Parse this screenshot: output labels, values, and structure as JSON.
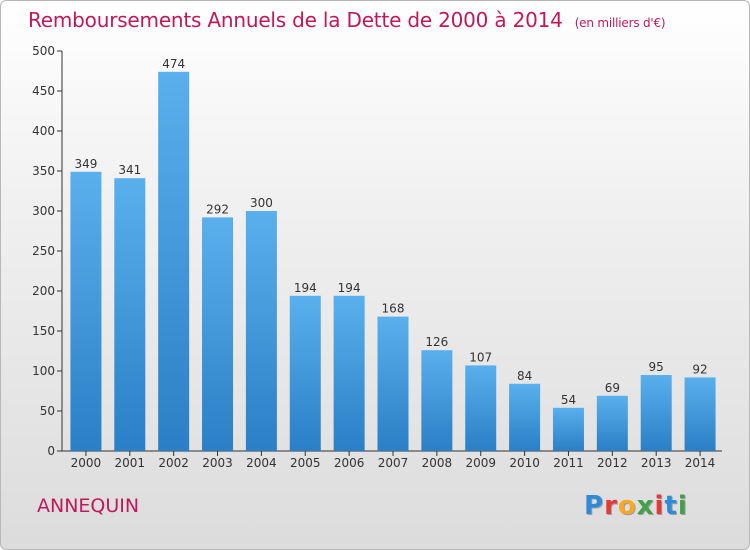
{
  "title": "Remboursements Annuels de la Dette de 2000 à 2014",
  "unit": "(en milliers d'€)",
  "commune": "ANNEQUIN",
  "logo": {
    "text": "Proxiti",
    "colors": [
      "#2e8bd8",
      "#e53935",
      "#f9a825",
      "#43a047",
      "#e53935",
      "#2e8bd8",
      "#43a047"
    ]
  },
  "chart_data": {
    "type": "bar",
    "title": "Remboursements Annuels de la Dette de 2000 à 2014",
    "subtitle": "(en milliers d'€)",
    "xlabel": "",
    "ylabel": "",
    "categories": [
      "2000",
      "2001",
      "2002",
      "2003",
      "2004",
      "2005",
      "2006",
      "2007",
      "2008",
      "2009",
      "2010",
      "2011",
      "2012",
      "2013",
      "2014"
    ],
    "values": [
      349,
      341,
      474,
      292,
      300,
      194,
      194,
      168,
      126,
      107,
      84,
      54,
      69,
      95,
      92
    ],
    "ylim": [
      0,
      500
    ],
    "yticks": [
      0,
      50,
      100,
      150,
      200,
      250,
      300,
      350,
      400,
      450,
      500
    ],
    "grid": false,
    "bar_color": "#3d9be0"
  }
}
